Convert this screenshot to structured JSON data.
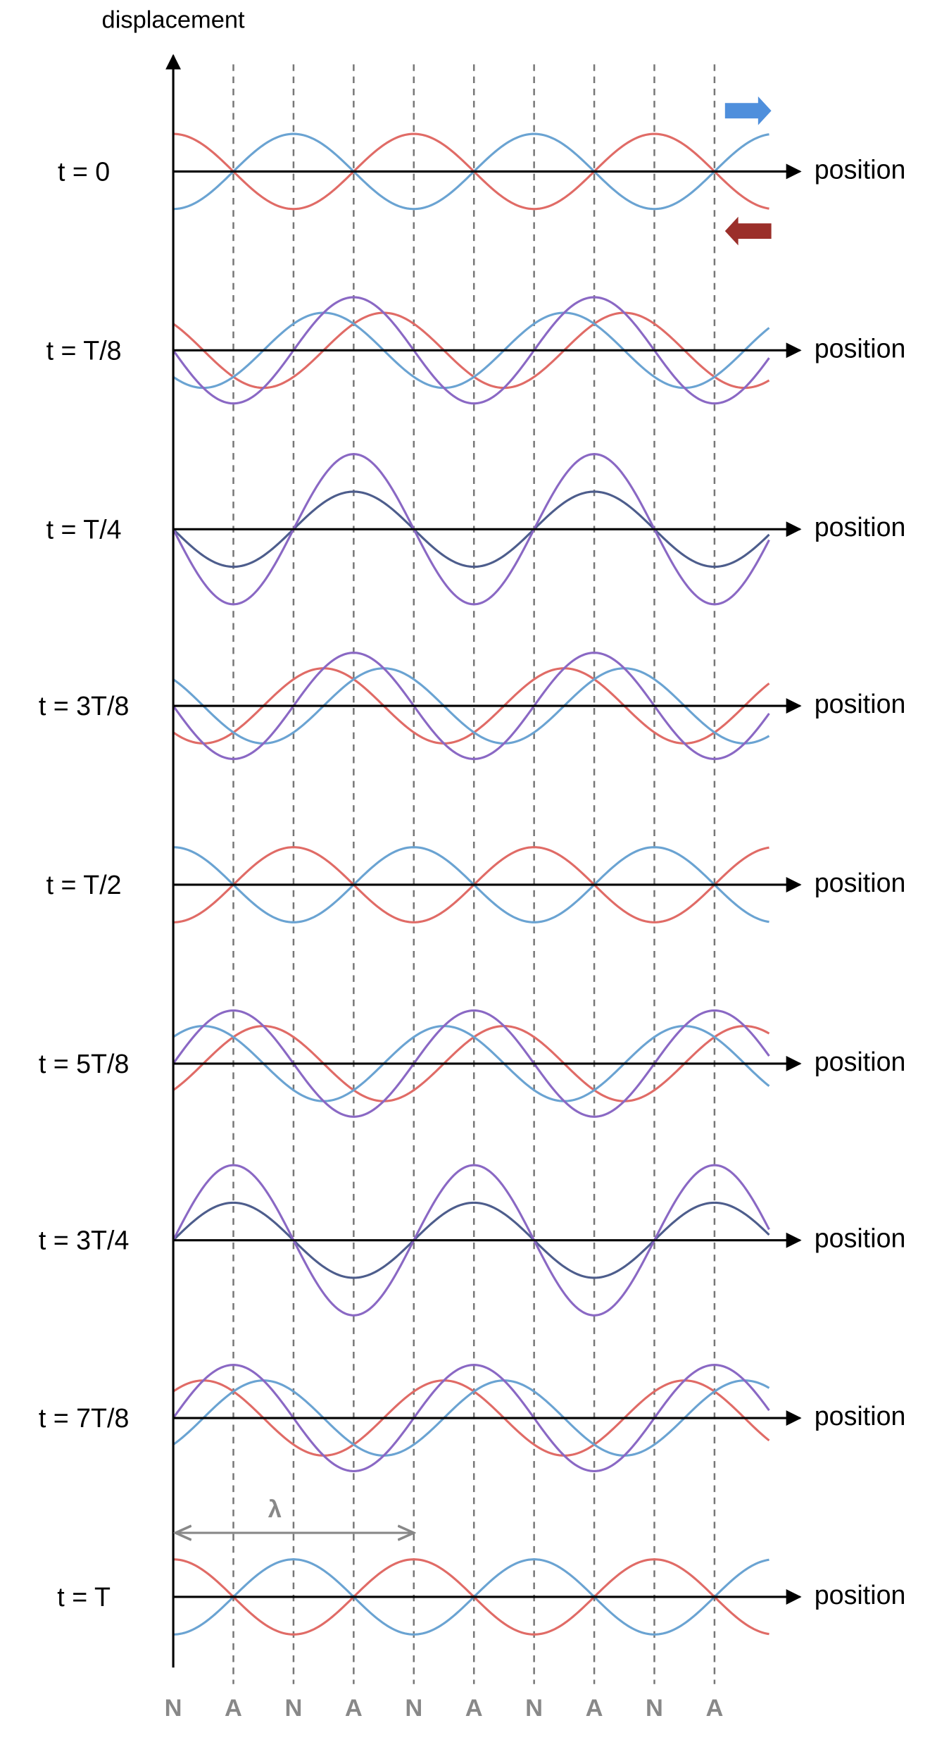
{
  "axis_label_y": "displacement",
  "rows": [
    {
      "time": "t = 0",
      "axis_label": "position"
    },
    {
      "time": "t = T/8",
      "axis_label": "position"
    },
    {
      "time": "t = T/4",
      "axis_label": "position"
    },
    {
      "time": "t = 3T/8",
      "axis_label": "position"
    },
    {
      "time": "t = T/2",
      "axis_label": "position"
    },
    {
      "time": "t = 5T/8",
      "axis_label": "position"
    },
    {
      "time": "t = 3T/4",
      "axis_label": "position"
    },
    {
      "time": "t = 7T/8",
      "axis_label": "position"
    },
    {
      "time": "t = T",
      "axis_label": "position"
    }
  ],
  "node_labels": [
    "N",
    "A",
    "N",
    "A",
    "N",
    "A",
    "N",
    "A",
    "N",
    "A"
  ],
  "wavelength_label": "λ"
}
